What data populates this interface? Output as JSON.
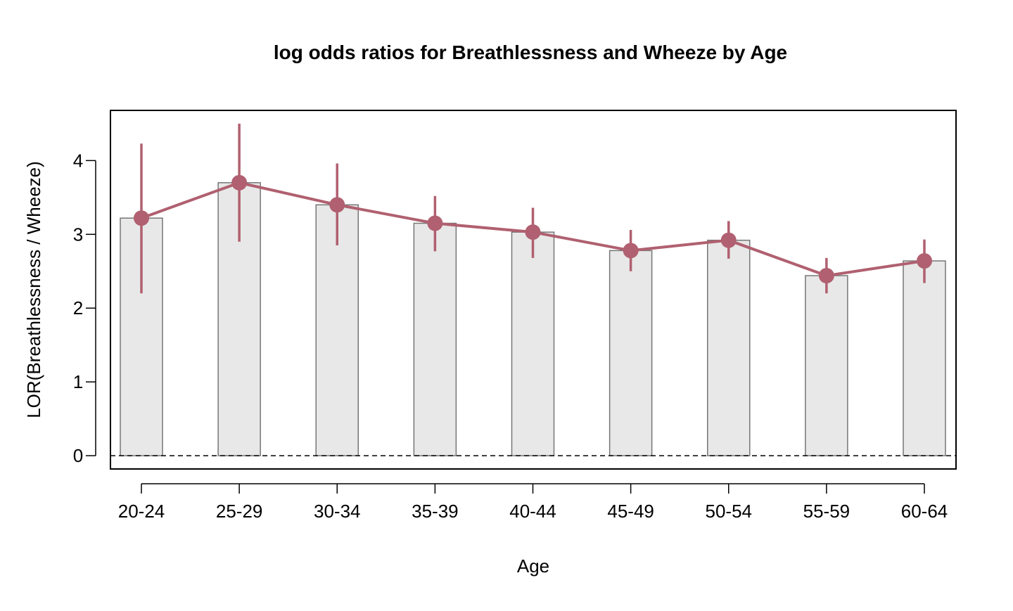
{
  "chart_data": {
    "type": "bar",
    "title": "log odds ratios for Breathlessness and Wheeze by Age",
    "xlabel": "Age",
    "ylabel": "LOR(Breathlessness / Wheeze)",
    "categories": [
      "20-24",
      "25-29",
      "30-34",
      "35-39",
      "40-44",
      "45-49",
      "50-54",
      "55-59",
      "60-64"
    ],
    "values": [
      3.22,
      3.7,
      3.4,
      3.15,
      3.03,
      2.78,
      2.92,
      2.44,
      2.64
    ],
    "ci_lower": [
      2.2,
      2.9,
      2.85,
      2.77,
      2.68,
      2.5,
      2.67,
      2.2,
      2.34
    ],
    "ci_upper": [
      4.23,
      4.5,
      3.96,
      3.52,
      3.36,
      3.06,
      3.18,
      2.68,
      2.93
    ],
    "yticks": [
      0,
      1,
      2,
      3,
      4
    ],
    "ylim": [
      -0.18,
      4.68
    ],
    "reference_line": 0,
    "grid": false,
    "legend": "none",
    "colors": {
      "bar_fill": "#e8e8e8",
      "bar_stroke": "#767676",
      "line_point": "#b06070",
      "axis": "#000000"
    }
  }
}
